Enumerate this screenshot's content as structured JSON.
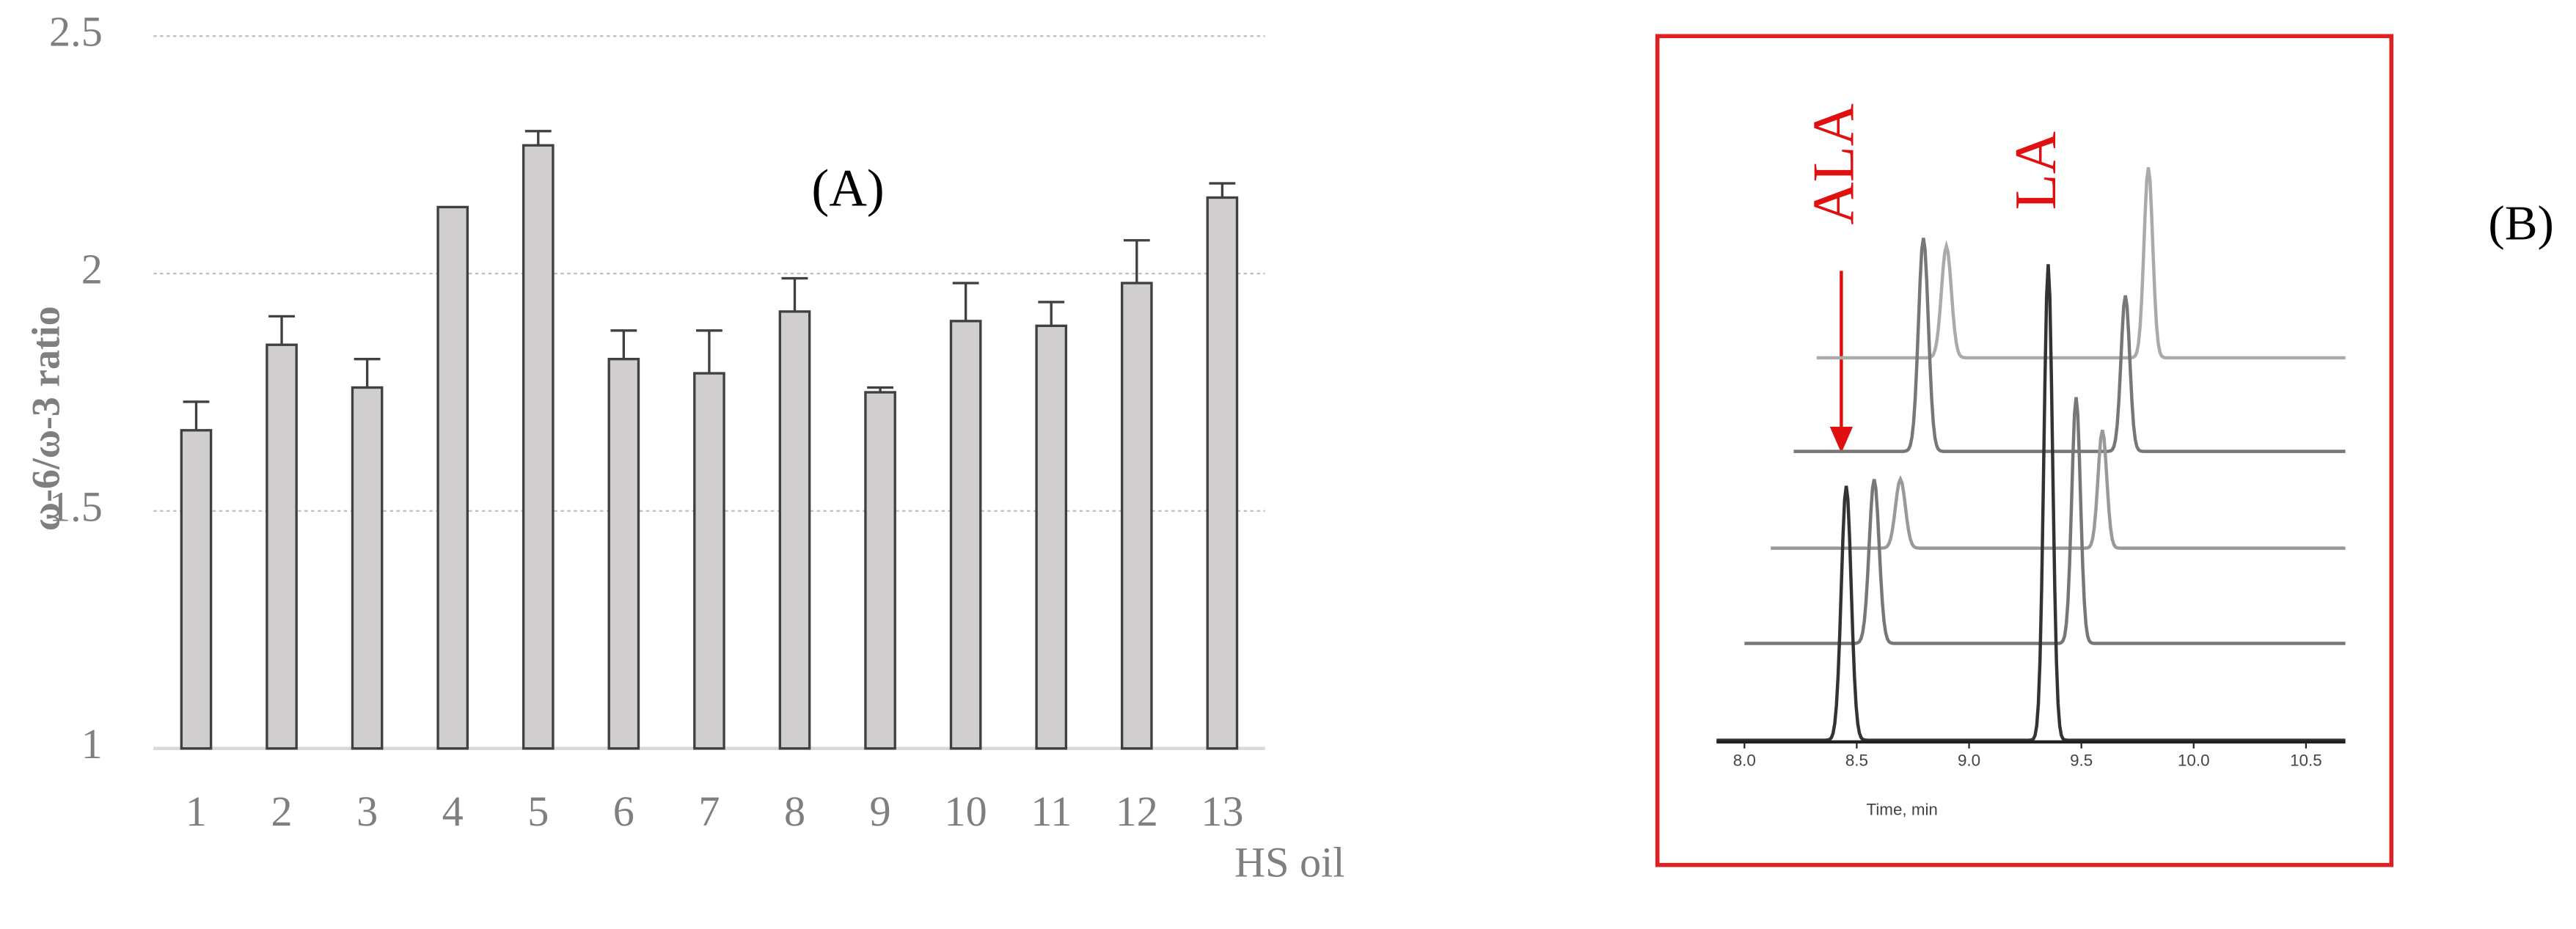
{
  "chart_data": {
    "type": "bar",
    "y_label": "ω-6/ω-3 ratio",
    "x_label": "HS oil",
    "annotation": "(A)",
    "categories": [
      "1",
      "2",
      "3",
      "4",
      "5",
      "6",
      "7",
      "8",
      "9",
      "10",
      "11",
      "12",
      "13"
    ],
    "values": [
      1.67,
      1.85,
      1.76,
      2.14,
      2.27,
      1.82,
      1.79,
      1.92,
      1.75,
      1.9,
      1.89,
      1.98,
      2.16
    ],
    "errors": [
      0.06,
      0.06,
      0.06,
      0,
      0.03,
      0.06,
      0.09,
      0.07,
      0.01,
      0.08,
      0.05,
      0.09,
      0.03
    ],
    "color": "#d0cece",
    "edge_color": "#404040",
    "ylim": [
      1,
      2.5
    ],
    "yticks": [
      1,
      1.5,
      2,
      2.5
    ],
    "grid": true
  },
  "figure_b": {
    "label": "(B)",
    "peak_labels": [
      "ALA",
      "LA"
    ],
    "axis_ticks": [
      "8.0",
      "8.5",
      "9.0",
      "9.5",
      "10.0",
      "10.5"
    ],
    "axis_label": "Time, min"
  }
}
